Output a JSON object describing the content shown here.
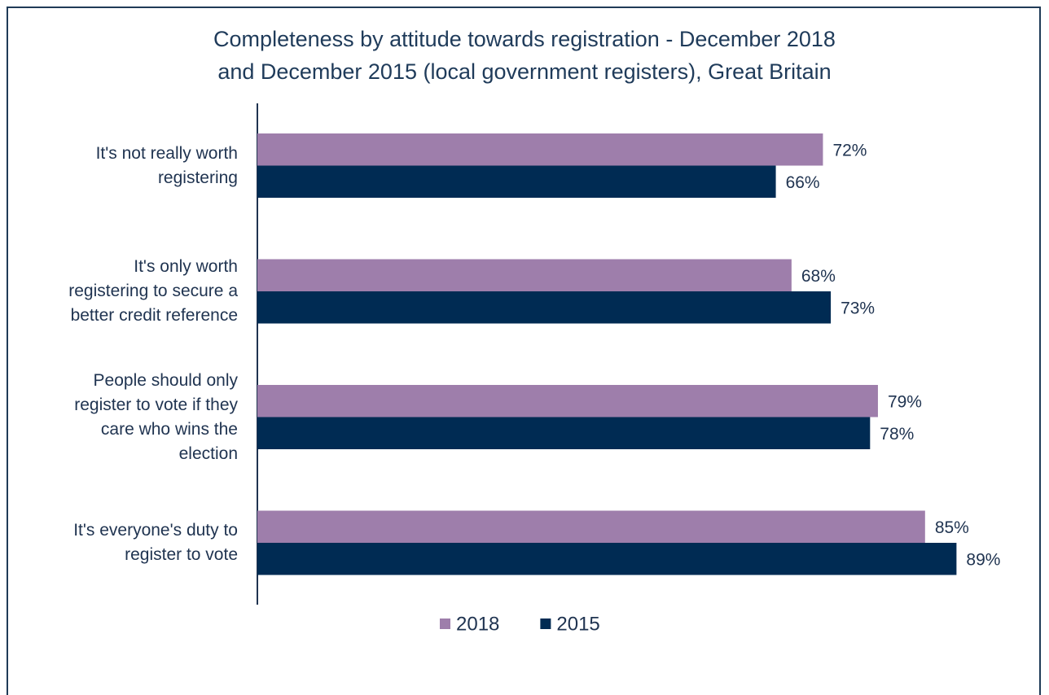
{
  "chart_data": {
    "type": "bar",
    "orientation": "horizontal",
    "title": "Completeness by attitude towards registration - December 2018\nand December 2015 (local government registers), Great Britain",
    "categories": [
      "It's not really worth\nregistering",
      "It's only worth\nregistering to secure a\nbetter credit reference",
      "People should only\nregister to vote if they\ncare who wins the\nelection",
      "It's everyone's duty to\nregister to vote"
    ],
    "series": [
      {
        "name": "2018",
        "color": "#9e7eab",
        "values": [
          72,
          68,
          79,
          85
        ],
        "value_labels": [
          "72%",
          "68%",
          "79%",
          "85%"
        ]
      },
      {
        "name": "2015",
        "color": "#002b53",
        "values": [
          66,
          73,
          78,
          89
        ],
        "value_labels": [
          "66%",
          "73%",
          "78%",
          "89%"
        ]
      }
    ],
    "legend": "bottom"
  }
}
